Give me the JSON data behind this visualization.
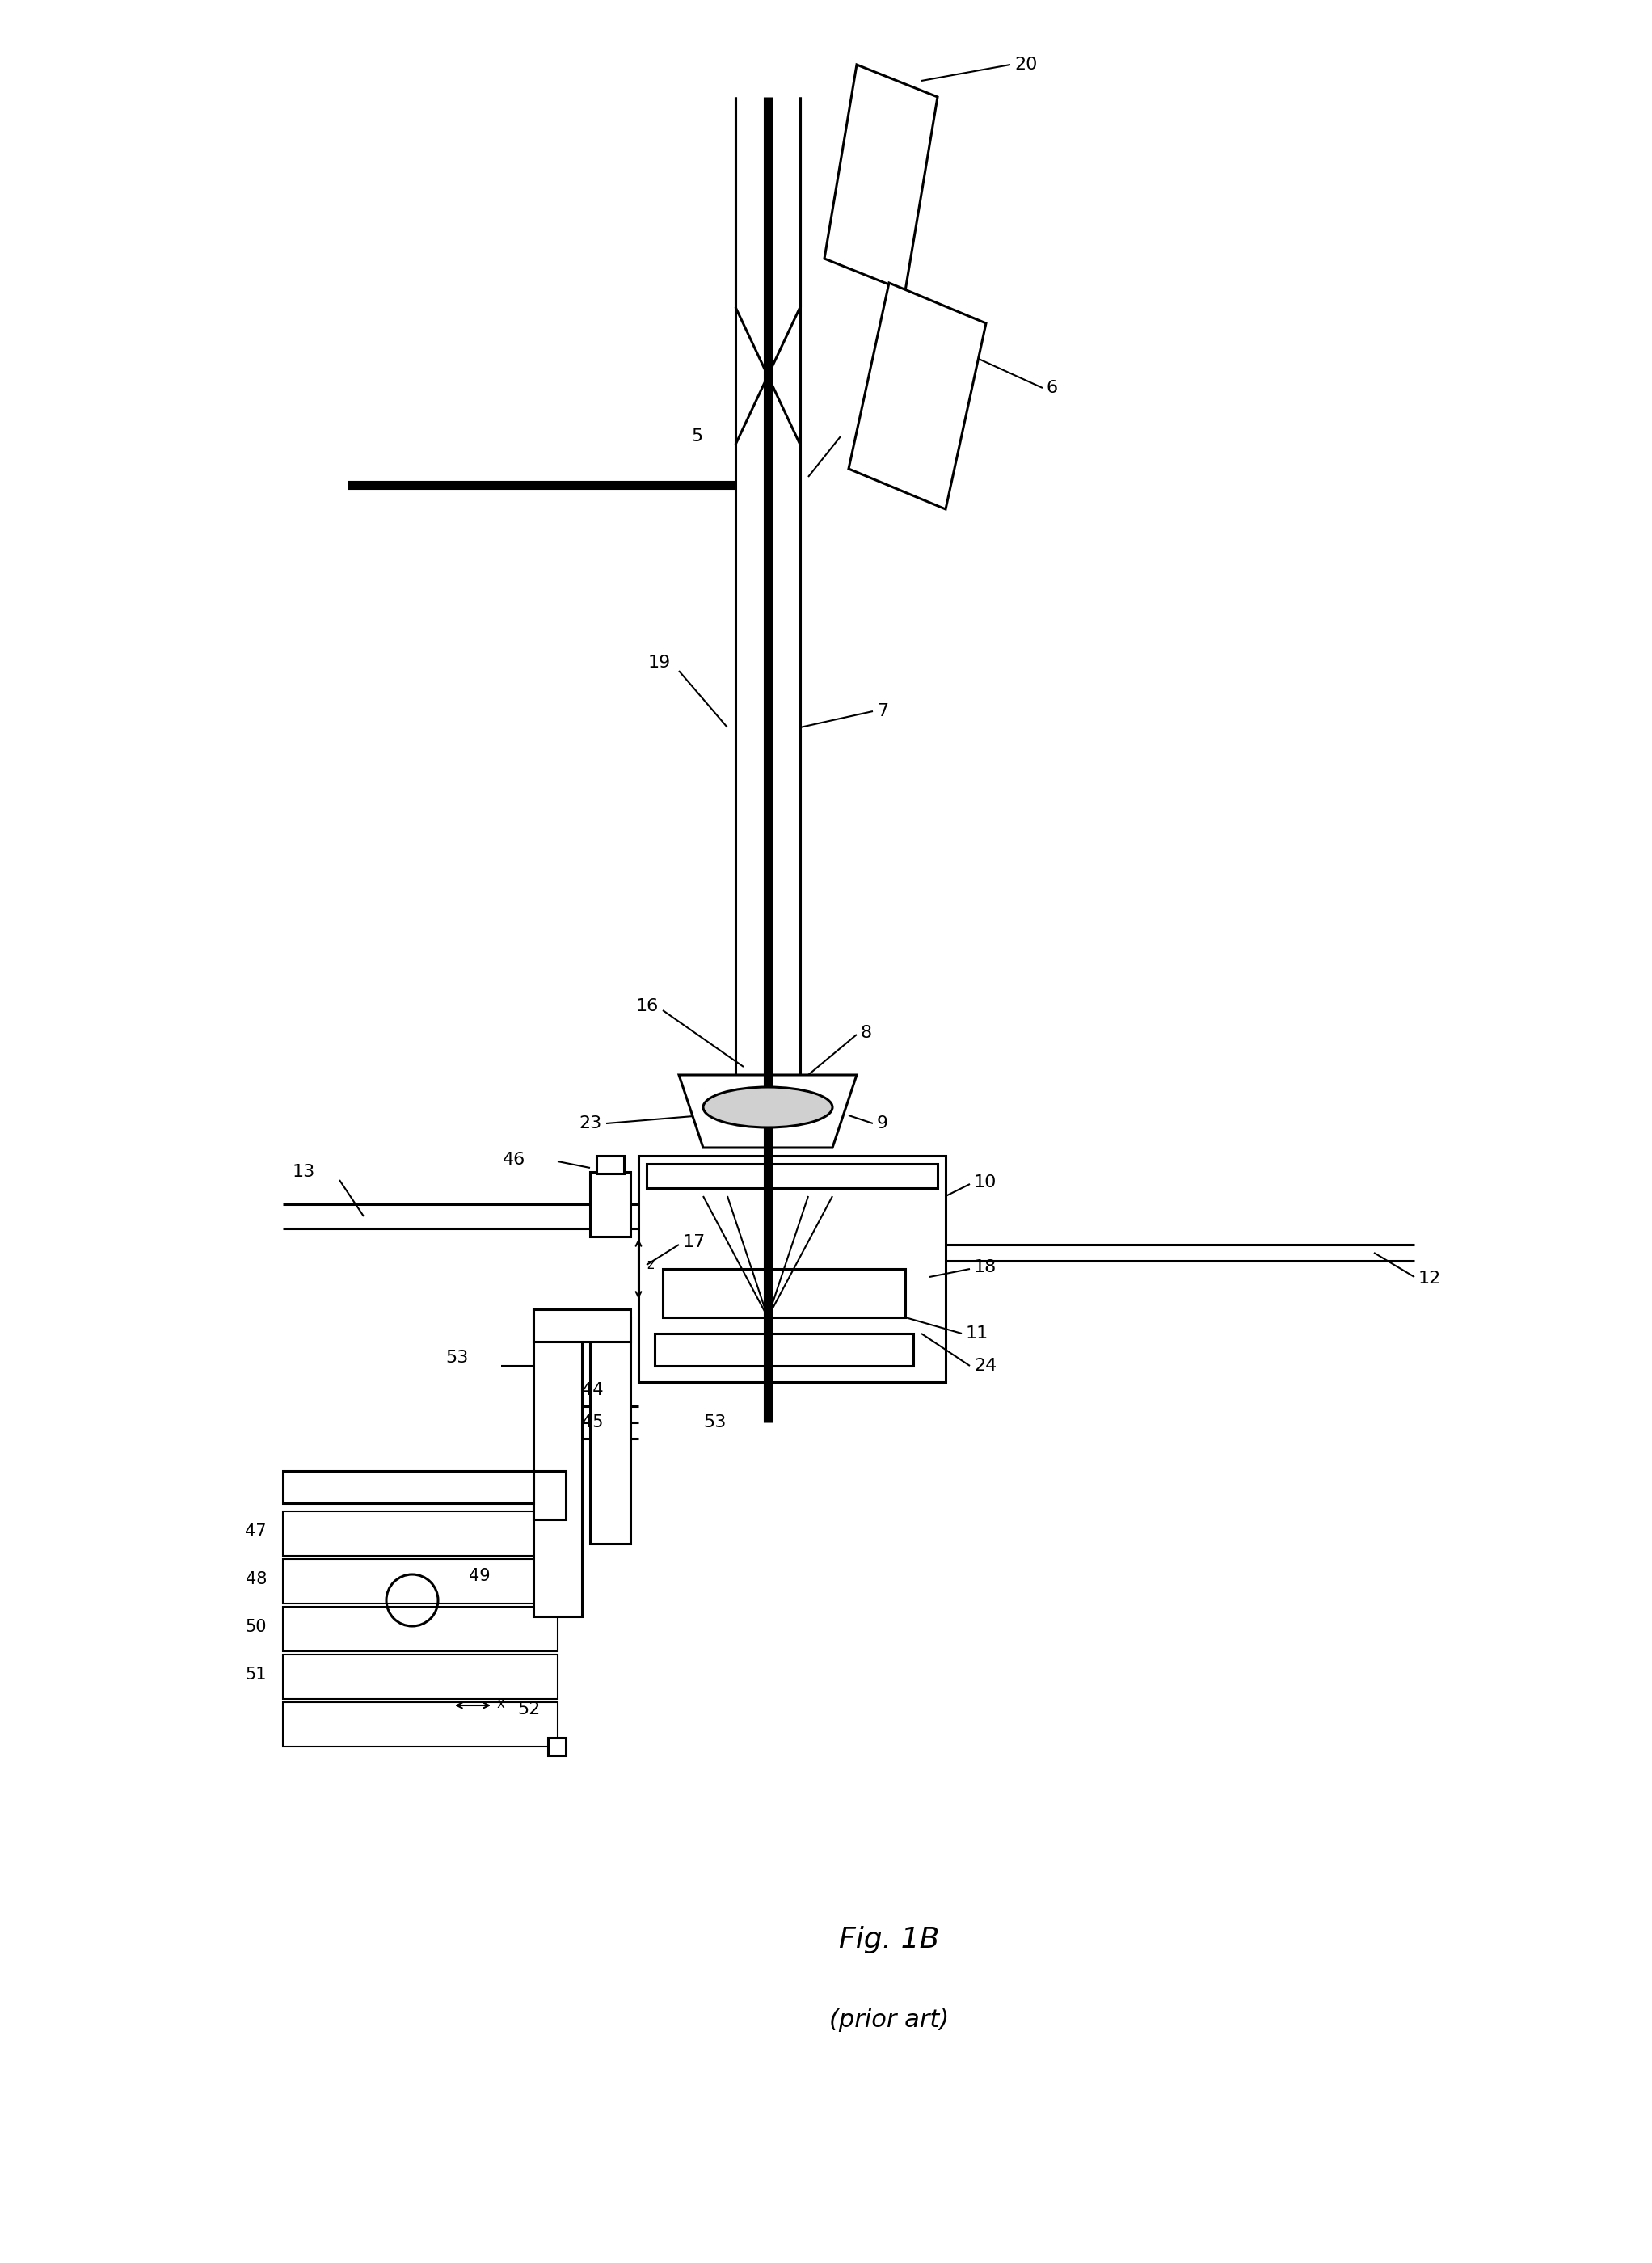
{
  "bg_color": "#ffffff",
  "fig_width": 20.44,
  "fig_height": 28.0,
  "title": "Fig. 1B",
  "subtitle": "(prior art)",
  "title_fontsize": 26,
  "subtitle_fontsize": 22,
  "lw_thin": 1.5,
  "lw_med": 2.2,
  "lw_thick": 6.0,
  "lw_xthick": 8.0
}
